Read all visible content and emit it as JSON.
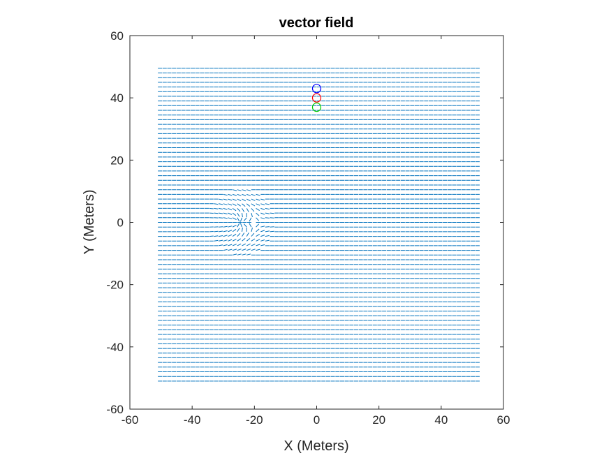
{
  "chart_data": {
    "type": "quiver",
    "title": "vector field",
    "xlabel": "X (Meters)",
    "ylabel": "Y (Meters)",
    "xlim": [
      -60,
      60
    ],
    "ylim": [
      -60,
      60
    ],
    "xticks": [
      -60,
      -40,
      -20,
      0,
      20,
      40,
      60
    ],
    "yticks": [
      -60,
      -40,
      -20,
      0,
      20,
      40,
      60
    ],
    "grid": false,
    "field": {
      "x_range": [
        -51,
        51
      ],
      "y_range": [
        -51,
        50
      ],
      "flow_direction": "+x",
      "sink_center": [
        -25,
        0
      ],
      "color": "#0072BD"
    },
    "markers": [
      {
        "label": "",
        "x": 0,
        "y": 43,
        "shape": "circle",
        "color": "#0000FF"
      },
      {
        "label": "",
        "x": 0,
        "y": 40,
        "shape": "circle",
        "color": "#FF0000"
      },
      {
        "label": "",
        "x": 0,
        "y": 37,
        "shape": "circle",
        "color": "#00CC00"
      }
    ]
  }
}
